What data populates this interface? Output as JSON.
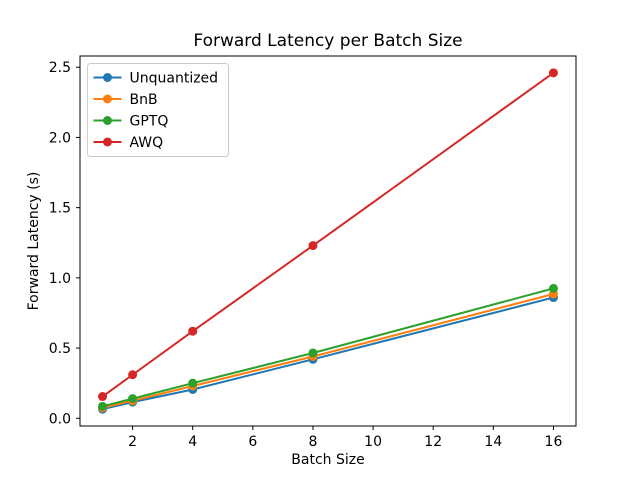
{
  "figure": {
    "background": "#ffffff"
  },
  "chart_data": {
    "type": "line",
    "title": "Forward Latency per Batch Size",
    "xlabel": "Batch Size",
    "ylabel": "Forward Latency (s)",
    "x": [
      1,
      2,
      4,
      8,
      16
    ],
    "series": [
      {
        "name": "Unquantized",
        "color": "#1f77b4",
        "values": [
          0.065,
          0.115,
          0.205,
          0.42,
          0.86
        ]
      },
      {
        "name": "BnB",
        "color": "#ff7f0e",
        "values": [
          0.075,
          0.125,
          0.23,
          0.44,
          0.885
        ]
      },
      {
        "name": "GPTQ",
        "color": "#2ca02c",
        "values": [
          0.085,
          0.14,
          0.25,
          0.465,
          0.925
        ]
      },
      {
        "name": "AWQ",
        "color": "#d62728",
        "values": [
          0.155,
          0.31,
          0.62,
          1.23,
          2.46
        ]
      }
    ],
    "xticks": [
      2,
      4,
      6,
      8,
      10,
      12,
      14,
      16
    ],
    "yticks": [
      "0.0",
      "0.5",
      "1.0",
      "1.5",
      "2.0",
      "2.5"
    ],
    "xlim": [
      0.25,
      16.75
    ],
    "ylim": [
      -0.055,
      2.58
    ],
    "grid": false,
    "marker": "circle",
    "line_width": 2,
    "marker_radius": 4.5,
    "legend": {
      "position": "upper left",
      "entries": [
        "Unquantized",
        "BnB",
        "GPTQ",
        "AWQ"
      ],
      "border_color": "#cccccc",
      "background": "#ffffff"
    },
    "axis_color": "#000000",
    "text_color": "#000000"
  }
}
